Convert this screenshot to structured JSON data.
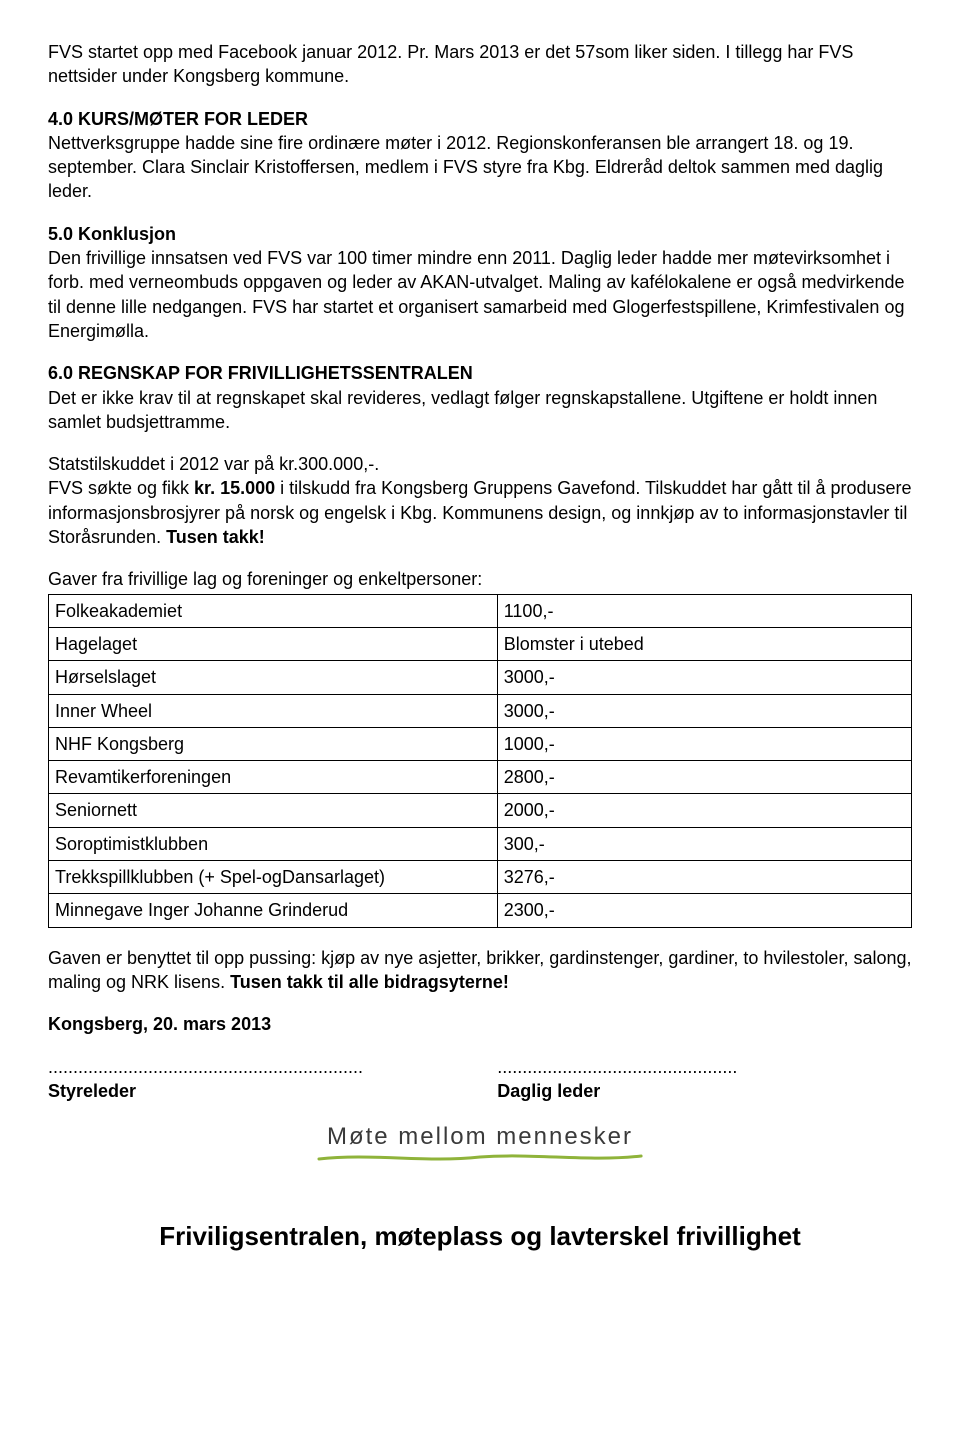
{
  "p_intro": "FVS startet opp med Facebook januar 2012.  Pr. Mars 2013 er det 57som liker siden.  I tillegg har FVS nettsider under Kongsberg kommune.",
  "s4": {
    "heading": "4.0 KURS/MØTER FOR LEDER",
    "body": "Nettverksgruppe hadde sine fire ordinære møter i 2012.  Regionskonferansen ble arrangert 18. og 19. september.  Clara Sinclair Kristoffersen, medlem i FVS styre fra Kbg. Eldreråd deltok sammen med daglig leder."
  },
  "s5": {
    "heading": "5.0 Konklusjon",
    "body": "Den frivillige innsatsen ved FVS var 100 timer mindre enn 2011.  Daglig leder hadde mer møtevirksomhet i forb. med verneombuds oppgaven og leder av AKAN-utvalget.  Maling av kafélokalene er også medvirkende til denne lille nedgangen.  FVS har startet et organisert samarbeid med Glogerfestspillene, Krimfestivalen og Energimølla."
  },
  "s6": {
    "heading": "6.0 REGNSKAP FOR FRIVILLIGHETSSENTRALEN",
    "body": "Det er ikke krav til at regnskapet skal revideres, vedlagt følger regnskapstallene.  Utgiftene er holdt innen samlet budsjettramme."
  },
  "p_stats_a": "Statstilskuddet  i 2012 var på kr.300.000,-.",
  "p_stats_b1": "FVS søkte og fikk ",
  "p_stats_b_bold": "kr. 15.000",
  "p_stats_b2": " i tilskudd fra Kongsberg Gruppens Gavefond.  Tilskuddet har gått til å produsere informasjonsbrosjyrer på norsk og engelsk i Kbg. Kommunens design, og innkjøp av to informasjonstavler til Storåsrunden.  ",
  "p_stats_b_thanks": "Tusen takk!",
  "gifts_intro": "Gaver fra frivillige lag og foreninger og enkeltpersoner:",
  "gifts": [
    [
      "Folkeakademiet",
      "1100,-"
    ],
    [
      "Hagelaget",
      "Blomster i utebed"
    ],
    [
      "Hørselslaget",
      "3000,-"
    ],
    [
      "Inner Wheel",
      "3000,-"
    ],
    [
      "NHF Kongsberg",
      "1000,-"
    ],
    [
      "Revamtikerforeningen",
      "2800,-"
    ],
    [
      "Seniornett",
      "2000,-"
    ],
    [
      "Soroptimistklubben",
      "300,-"
    ],
    [
      "Trekkspillklubben (+ Spel-ogDansarlaget)",
      "3276,-"
    ],
    [
      "Minnegave Inger Johanne Grinderud",
      "2300,-"
    ]
  ],
  "p_use1": "Gaven er benyttet til opp pussing: kjøp av nye asjetter, brikker, gardinstenger, gardiner, to hvilestoler, salong, maling og NRK lisens.  ",
  "p_use_bold": "Tusen takk til alle bidragsyterne!",
  "date": "Kongsberg, 20. mars 2013",
  "dots_left": "...............................................................",
  "dots_right": "................................................",
  "sig_left": "Styreleder",
  "sig_right": "Daglig leder",
  "tagline": "Møte mellom mennesker",
  "footer": "Friviligsentralen, møteplass og lavterskel frivillighet",
  "underline_color": "#8fb33a"
}
